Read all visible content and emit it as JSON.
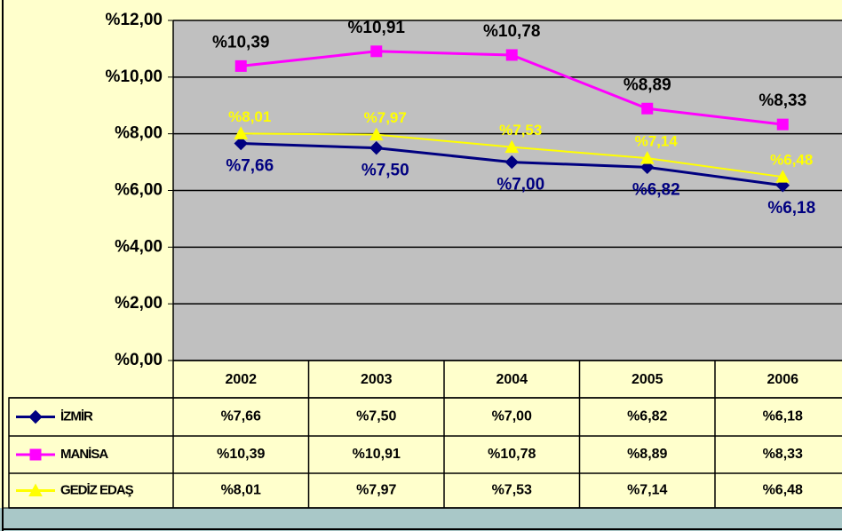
{
  "chart_data": {
    "type": "line",
    "categories": [
      "2002",
      "2003",
      "2004",
      "2005",
      "2006"
    ],
    "series": [
      {
        "name": "İZMİR",
        "color": "#000080",
        "values": [
          7.66,
          7.5,
          7.0,
          6.82,
          6.18
        ],
        "value_labels": [
          "%7,66",
          "%7,50",
          "%7,00",
          "%6,82",
          "%6,18"
        ]
      },
      {
        "name": "MANİSA",
        "color": "#ff00ff",
        "values": [
          10.39,
          10.91,
          10.78,
          8.89,
          8.33
        ],
        "value_labels": [
          "%10,39",
          "%10,91",
          "%10,78",
          "%8,89",
          "%8,33"
        ]
      },
      {
        "name": "GEDİZ EDAŞ",
        "color": "#ffff00",
        "values": [
          8.01,
          7.97,
          7.53,
          7.14,
          6.48
        ],
        "value_labels": [
          "%8,01",
          "%7,97",
          "%7,53",
          "%7,14",
          "%6,48"
        ]
      }
    ],
    "ylim": [
      0,
      12
    ],
    "yticks": [
      {
        "value": 0,
        "label": "%0,00"
      },
      {
        "value": 2,
        "label": "%2,00"
      },
      {
        "value": 4,
        "label": "%4,00"
      },
      {
        "value": 6,
        "label": "%6,00"
      },
      {
        "value": 8,
        "label": "%8,00"
      },
      {
        "value": 10,
        "label": "%10,00"
      },
      {
        "value": 12,
        "label": "%12,00"
      }
    ],
    "grid": true
  }
}
